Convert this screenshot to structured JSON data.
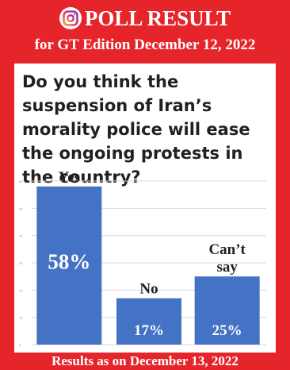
{
  "header": {
    "title": "POLL RESULT",
    "subtitle": "for GT Edition December 12, 2022",
    "icon": "instagram-icon"
  },
  "question": "Do you think the suspension of Iran’s morality police will ease the ongoing protests in the country?",
  "footer": "Results as on December 13, 2022",
  "colors": {
    "frame": "#e6252a",
    "bar": "#4472c4",
    "text": "#231f20"
  },
  "chart_data": {
    "type": "bar",
    "categories": [
      "Yes",
      "No",
      "Can’t say"
    ],
    "values": [
      58,
      17,
      25
    ],
    "value_labels": [
      "58%",
      "17%",
      "25%"
    ],
    "ylim": [
      0,
      60
    ],
    "yticks": [
      0,
      10,
      20,
      30,
      40,
      50,
      60
    ],
    "grid": true,
    "title": "",
    "xlabel": "",
    "ylabel": ""
  }
}
